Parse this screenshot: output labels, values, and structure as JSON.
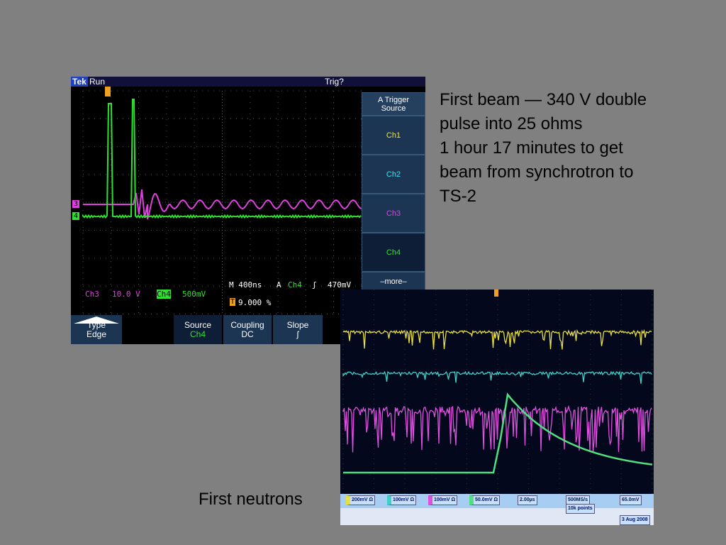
{
  "slide": {
    "text_lines": [
      "First beam — 340 V double",
      "pulse into 25 ohms",
      "1 hour 17 minutes to get",
      "beam from synchrotron to",
      "TS-2"
    ],
    "caption": "First neutrons"
  },
  "scope1": {
    "brand": "Tek",
    "status": "Run",
    "trigger_status": "Trig?",
    "menu": [
      "A Trigger Source",
      "Ch1",
      "Ch2",
      "Ch3",
      "Ch4",
      "–more–"
    ],
    "ch_markers": [
      "3",
      "4"
    ],
    "ch3_label": "Ch3",
    "ch3_value": "10.0 V",
    "ch4_label": "Ch4",
    "ch4_value": "500mV",
    "timebase": "M 400ns",
    "trig_label": "A",
    "trig_channel": "Ch4",
    "trig_slope": "ʃ",
    "trig_level": "470mV",
    "trig_pos": "9.000 %",
    "bottom_menu": [
      {
        "top": "Type",
        "bottom": "Edge"
      },
      {
        "top": "Source",
        "bottom": "Ch4"
      },
      {
        "top": "Coupling",
        "bottom": "DC"
      },
      {
        "top": "Slope",
        "bottom": "ʃ"
      }
    ]
  },
  "scope2": {
    "channels": [
      "200mV Ω",
      "100mV Ω",
      "100mV Ω",
      "50.0mV Ω"
    ],
    "timebase": "2.00µs",
    "sample_rate": "500MS/s",
    "points": "10k points",
    "trigger_level": "65.0mV",
    "date": "3 Aug 2008"
  }
}
